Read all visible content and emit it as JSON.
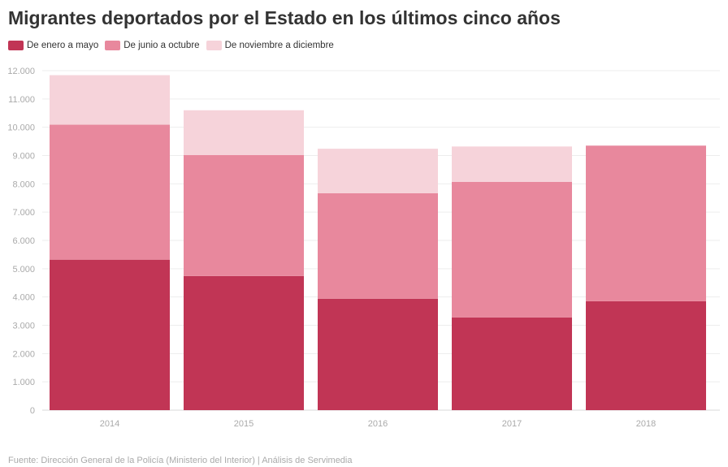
{
  "chart_data": {
    "type": "bar",
    "stacked": true,
    "title": "Migrantes deportados por el Estado en los últimos cinco años",
    "categories": [
      "2014",
      "2015",
      "2016",
      "2017",
      "2018"
    ],
    "series": [
      {
        "name": "De enero a mayo",
        "color": "#c13555",
        "values": [
          5320,
          4740,
          3940,
          3280,
          3850
        ]
      },
      {
        "name": "De junio a octubre",
        "color": "#e8889d",
        "values": [
          4770,
          4280,
          3730,
          4790,
          5500
        ]
      },
      {
        "name": "De noviembre a diciembre",
        "color": "#f6d3da",
        "values": [
          1750,
          1580,
          1570,
          1250,
          0
        ]
      }
    ],
    "ylim": [
      0,
      12000
    ],
    "yticks": [
      0,
      1000,
      2000,
      3000,
      4000,
      5000,
      6000,
      7000,
      8000,
      9000,
      10000,
      11000,
      12000
    ],
    "ytick_labels": [
      "0",
      "1.000",
      "2.000",
      "3.000",
      "4.000",
      "5.000",
      "6.000",
      "7.000",
      "8.000",
      "9.000",
      "10.000",
      "11.000",
      "12.000"
    ],
    "xlabel": "",
    "ylabel": "",
    "grid": true,
    "legend_position": "top-left",
    "source": "Fuente: Dirección General de la Policía (Ministerio del Interior) | Análisis de Servimedia"
  }
}
